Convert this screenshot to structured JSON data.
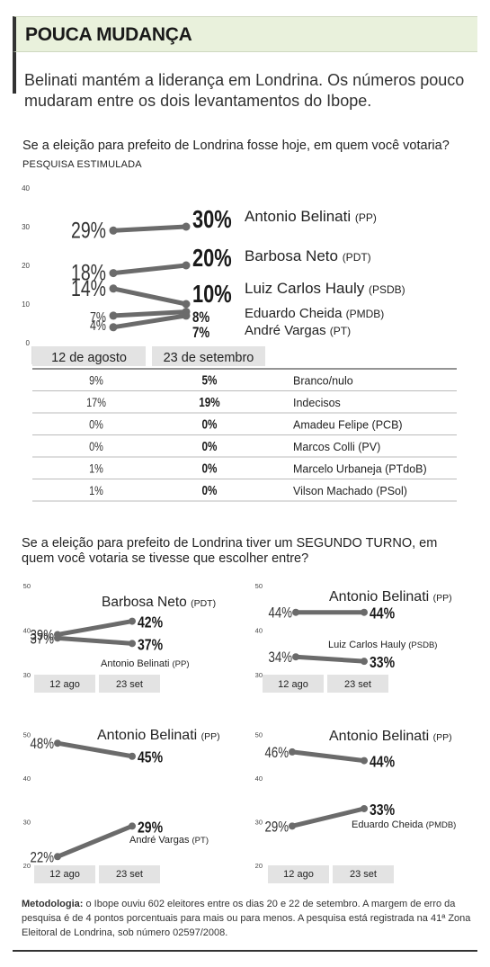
{
  "header": {
    "title": "POUCA MUDANÇA",
    "subtitle": "Belinati mantém a liderança em Londrina. Os números pouco mudaram entre os dois levantamentos do Ibope."
  },
  "question1": {
    "text": "Se a eleição para prefeito de Londrina fosse hoje, em quem você votaria?",
    "sub": "PESQUISA ESTIMULADA"
  },
  "question2": {
    "text": "Se a eleição para prefeito de Londrina tiver um SEGUNDO TURNO, em quem você votaria se tivesse que escolher entre?"
  },
  "methodology": {
    "label": "Metodologia:",
    "text": " o Ibope ouviu 602 eleitores entre os dias 20 e 22 de setembro. A margem de erro da pesquisa é de 4 pontos porcentuais para mais ou para menos. A pesquisa está registrada na 41ª Zona Eleitoral de Londrina, sob número 02597/2008."
  },
  "colors": {
    "line": "#6b6b6b",
    "table_header": "#e3e3e3",
    "header_bg": "#e9f1dc"
  },
  "chart_data": [
    {
      "type": "line",
      "categories": [
        "12 de agosto",
        "23 de setembro"
      ],
      "yticks": [
        "40",
        "30",
        "20",
        "10",
        "0"
      ],
      "ylim": [
        0,
        40
      ],
      "series": [
        {
          "name": "Antonio Belinati",
          "party": "(PP)",
          "values": [
            29,
            30
          ],
          "labels": [
            "29%",
            "30%"
          ]
        },
        {
          "name": "Barbosa Neto",
          "party": "(PDT)",
          "values": [
            18,
            20
          ],
          "labels": [
            "18%",
            "20%"
          ]
        },
        {
          "name": "Luiz Carlos Hauly",
          "party": "(PSDB)",
          "values": [
            14,
            10
          ],
          "labels": [
            "14%",
            "10%"
          ]
        },
        {
          "name": "Eduardo Cheida",
          "party": "(PMDB)",
          "values": [
            7,
            8
          ],
          "labels": [
            "7%",
            "8%"
          ]
        },
        {
          "name": "André Vargas",
          "party": "(PT)",
          "values": [
            4,
            7
          ],
          "labels": [
            "4%",
            "7%"
          ]
        }
      ]
    },
    {
      "type": "table",
      "rows": [
        [
          "9%",
          "5%",
          "Branco/nulo"
        ],
        [
          "17%",
          "19%",
          "Indecisos"
        ],
        [
          "0%",
          "0%",
          "Amadeu Felipe (PCB)"
        ],
        [
          "0%",
          "0%",
          "Marcos Colli (PV)"
        ],
        [
          "1%",
          "0%",
          "Marcelo Urbaneja (PTdoB)"
        ],
        [
          "1%",
          "0%",
          "Vilson Machado (PSol)"
        ]
      ]
    },
    {
      "type": "line",
      "categories": [
        "12 ago",
        "23 set"
      ],
      "yticks": [
        "50",
        "40",
        "30"
      ],
      "ylim": [
        30,
        50
      ],
      "series": [
        {
          "name": "Barbosa Neto",
          "party": "(PDT)",
          "values": [
            39,
            42
          ],
          "labels": [
            "39%",
            "42%"
          ]
        },
        {
          "name": "Antonio Belinati",
          "party": "(PP)",
          "values": [
            37,
            37
          ],
          "labels": [
            "37%",
            "37%"
          ]
        }
      ]
    },
    {
      "type": "line",
      "categories": [
        "12 ago",
        "23 set"
      ],
      "yticks": [
        "50",
        "40",
        "30"
      ],
      "ylim": [
        30,
        50
      ],
      "series": [
        {
          "name": "Antonio Belinati",
          "party": "(PP)",
          "values": [
            44,
            44
          ],
          "labels": [
            "44%",
            "44%"
          ]
        },
        {
          "name": "Luiz Carlos Hauly",
          "party": "(PSDB)",
          "values": [
            34,
            33
          ],
          "labels": [
            "34%",
            "33%"
          ]
        }
      ]
    },
    {
      "type": "line",
      "categories": [
        "12 ago",
        "23 set"
      ],
      "yticks": [
        "50",
        "40",
        "30",
        "20"
      ],
      "ylim": [
        20,
        50
      ],
      "series": [
        {
          "name": "Antonio Belinati",
          "party": "(PP)",
          "values": [
            48,
            45
          ],
          "labels": [
            "48%",
            "45%"
          ]
        },
        {
          "name": "André Vargas",
          "party": "(PT)",
          "values": [
            22,
            29
          ],
          "labels": [
            "22%",
            "29%"
          ]
        }
      ]
    },
    {
      "type": "line",
      "categories": [
        "12 ago",
        "23 set"
      ],
      "yticks": [
        "50",
        "40",
        "30",
        "20"
      ],
      "ylim": [
        20,
        50
      ],
      "series": [
        {
          "name": "Antonio Belinati",
          "party": "(PP)",
          "values": [
            46,
            44
          ],
          "labels": [
            "46%",
            "44%"
          ]
        },
        {
          "name": "Eduardo Cheida",
          "party": "(PMDB)",
          "values": [
            29,
            33
          ],
          "labels": [
            "29%",
            "33%"
          ]
        }
      ]
    }
  ]
}
